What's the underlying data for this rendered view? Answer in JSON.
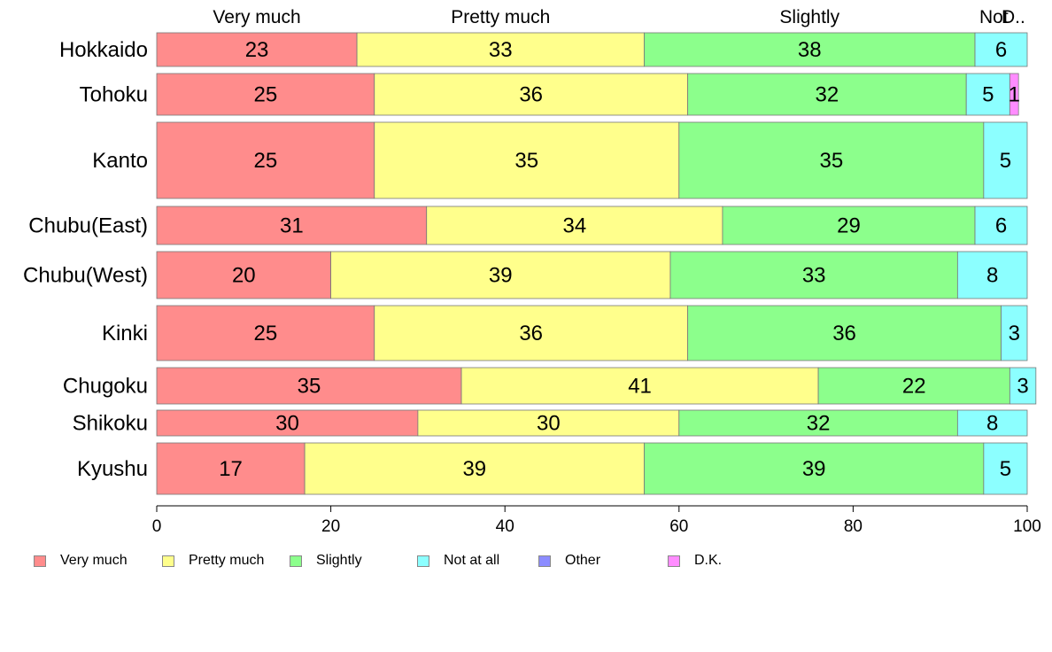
{
  "chart_data": {
    "type": "bar",
    "orientation": "horizontal",
    "stacked": true,
    "categories": [
      "Hokkaido",
      "Tohoku",
      "Kanto",
      "Chubu(East)",
      "Chubu(West)",
      "Kinki",
      "Chugoku",
      "Shikoku",
      "Kyushu"
    ],
    "series": [
      {
        "name": "Very much",
        "color": "#FF8C8C",
        "values": [
          23,
          25,
          25,
          31,
          20,
          25,
          35,
          30,
          17
        ]
      },
      {
        "name": "Pretty much",
        "color": "#FFFF8C",
        "values": [
          33,
          36,
          35,
          34,
          39,
          36,
          41,
          30,
          39
        ]
      },
      {
        "name": "Slightly",
        "color": "#8CFF8C",
        "values": [
          38,
          32,
          35,
          29,
          33,
          36,
          22,
          32,
          39
        ]
      },
      {
        "name": "Not at all",
        "color": "#8CFFFF",
        "values": [
          6,
          5,
          5,
          6,
          8,
          3,
          3,
          8,
          5
        ]
      },
      {
        "name": "Other",
        "color": "#8C8CFF",
        "values": [
          0,
          0,
          0,
          0,
          0,
          0,
          0,
          0,
          0
        ]
      },
      {
        "name": "D.K.",
        "color": "#FF8CFF",
        "values": [
          0,
          1,
          0,
          0,
          0,
          0,
          0,
          0,
          0
        ]
      }
    ],
    "top_labels": [
      "Very much",
      "Pretty much",
      "Slightly",
      "Not",
      "D.."
    ],
    "xlim": [
      0,
      100
    ],
    "xticks": [
      0,
      20,
      40,
      60,
      80,
      100
    ],
    "legend_position": "bottom"
  }
}
